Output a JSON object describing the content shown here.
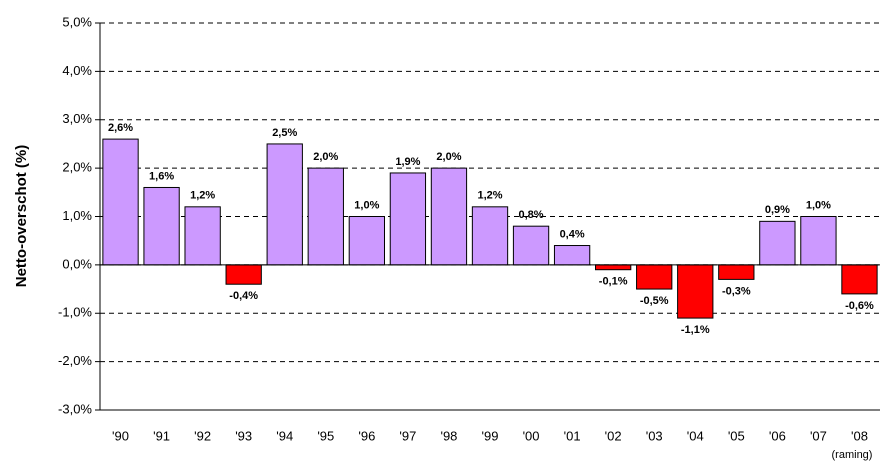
{
  "chart_data": {
    "type": "bar",
    "ylabel": "Netto-overschot (%)",
    "categories": [
      "'90",
      "'91",
      "'92",
      "'93",
      "'94",
      "'95",
      "'96",
      "'97",
      "'98",
      "'99",
      "'00",
      "'01",
      "'02",
      "'03",
      "'04",
      "'05",
      "'06",
      "'07",
      "'08"
    ],
    "values": [
      2.6,
      1.6,
      1.2,
      -0.4,
      2.5,
      2.0,
      1.0,
      1.9,
      2.0,
      1.2,
      0.8,
      0.4,
      -0.1,
      -0.5,
      -1.1,
      -0.3,
      0.9,
      1.0,
      -0.6
    ],
    "value_labels": [
      "2,6%",
      "1,6%",
      "1,2%",
      "-0,4%",
      "2,5%",
      "2,0%",
      "1,0%",
      "1,9%",
      "2,0%",
      "1,2%",
      "0,8%",
      "0,4%",
      "-0,1%",
      "-0,5%",
      "-1,1%",
      "-0,3%",
      "0,9%",
      "1,0%",
      "-0,6%"
    ],
    "annotation": "(raming)",
    "color": "#cc99ff",
    "negative_color": "#ff0000",
    "ylim": [
      -3,
      5
    ],
    "yticks": [
      {
        "value": -3,
        "label": "-3,0%"
      },
      {
        "value": -2,
        "label": "-2,0%"
      },
      {
        "value": -1,
        "label": "-1,0%"
      },
      {
        "value": 0,
        "label": "0,0%"
      },
      {
        "value": 1,
        "label": "1,0%"
      },
      {
        "value": 2,
        "label": "2,0%"
      },
      {
        "value": 3,
        "label": "3,0%"
      },
      {
        "value": 4,
        "label": "4,0%"
      },
      {
        "value": 5,
        "label": "5,0%"
      }
    ],
    "grid": true
  }
}
